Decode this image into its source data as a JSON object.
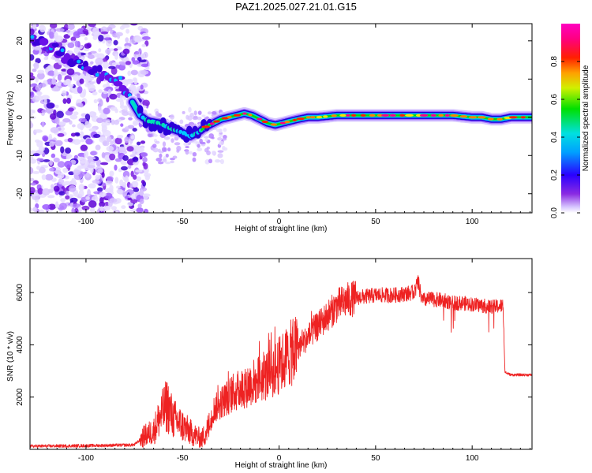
{
  "title": "PAZ1.2025.027.21.01.G15",
  "colors": {
    "background": "#ffffff",
    "snr_line": "#ee2222",
    "ridge_halo": "#1a00d8",
    "scatter": "#8a2be2"
  },
  "chart_data": [
    {
      "type": "heatmap",
      "title": "PAZ1.2025.027.21.01.G15",
      "xlabel": "Height of straight line (km)",
      "ylabel": "Frequency (Hz)",
      "xlim": [
        -129,
        131
      ],
      "ylim": [
        -25,
        24.5
      ],
      "x_ticks": [
        -100,
        -50,
        0,
        50,
        100
      ],
      "y_ticks": [
        -20,
        -10,
        0,
        10,
        20
      ],
      "colorscale": "rainbow (purple-blue-cyan-green-yellow-red-magenta)",
      "colorbar": {
        "label": "Normalized spectral amplitude",
        "range": [
          0,
          1
        ],
        "ticks": [
          "0.0",
          "0.2",
          "0.4",
          "0.6",
          "0.8"
        ]
      },
      "ridge": {
        "description": "main frequency ridge",
        "x": [
          -129,
          -118,
          -108,
          -98,
          -90,
          -82,
          -76,
          -72,
          -68,
          -62,
          -56,
          -50,
          -46,
          -42,
          -38,
          -34,
          -30,
          -26,
          -22,
          -18,
          -14,
          -10,
          -6,
          -2,
          2,
          6,
          10,
          15,
          20,
          30,
          40,
          50,
          60,
          70,
          80,
          90,
          100,
          105,
          110,
          115,
          120,
          125,
          131
        ],
        "frequency": [
          21,
          18.5,
          15,
          12.5,
          11,
          9,
          4,
          0.5,
          -1,
          -1.5,
          -3,
          -4,
          -5,
          -4,
          -2.5,
          -1.5,
          -0.5,
          0,
          0.5,
          1,
          0.5,
          -0.5,
          -1.5,
          -2,
          -1.5,
          -1,
          -0.5,
          0,
          0,
          0.5,
          0.5,
          0.5,
          0.5,
          0.5,
          0.5,
          0.5,
          0,
          0,
          -0.5,
          -0.5,
          0,
          0,
          0
        ]
      }
    },
    {
      "type": "line",
      "xlabel": "Height of straight line (km)",
      "ylabel": "SNR (10 * v/v)",
      "xlim": [
        -129,
        131
      ],
      "ylim": [
        0,
        7300
      ],
      "x_ticks": [
        -100,
        -50,
        0,
        50,
        100
      ],
      "y_ticks": [
        2000,
        4000,
        6000
      ],
      "series": [
        {
          "description": "SNR envelope",
          "x": [
            -129,
            -110,
            -90,
            -75,
            -70,
            -65,
            -62,
            -58,
            -55,
            -50,
            -45,
            -40,
            -36,
            -34,
            -30,
            -25,
            -20,
            -15,
            -10,
            -5,
            0,
            5,
            10,
            15,
            20,
            25,
            30,
            35,
            40,
            45,
            50,
            55,
            60,
            65,
            70,
            72,
            74,
            78,
            85,
            90,
            95,
            100,
            105,
            110,
            116,
            117,
            120,
            125,
            131
          ],
          "y": [
            120,
            130,
            150,
            170,
            500,
            700,
            1200,
            1700,
            1200,
            900,
            600,
            400,
            900,
            1500,
            1800,
            2100,
            2300,
            2500,
            2700,
            2900,
            3200,
            3600,
            3900,
            4300,
            4700,
            5100,
            5500,
            5700,
            5800,
            5850,
            5900,
            5900,
            5900,
            5950,
            6000,
            6400,
            5700,
            5750,
            5700,
            5600,
            5600,
            5550,
            5500,
            5450,
            5500,
            2950,
            2850,
            2850,
            2850
          ]
        }
      ]
    }
  ]
}
